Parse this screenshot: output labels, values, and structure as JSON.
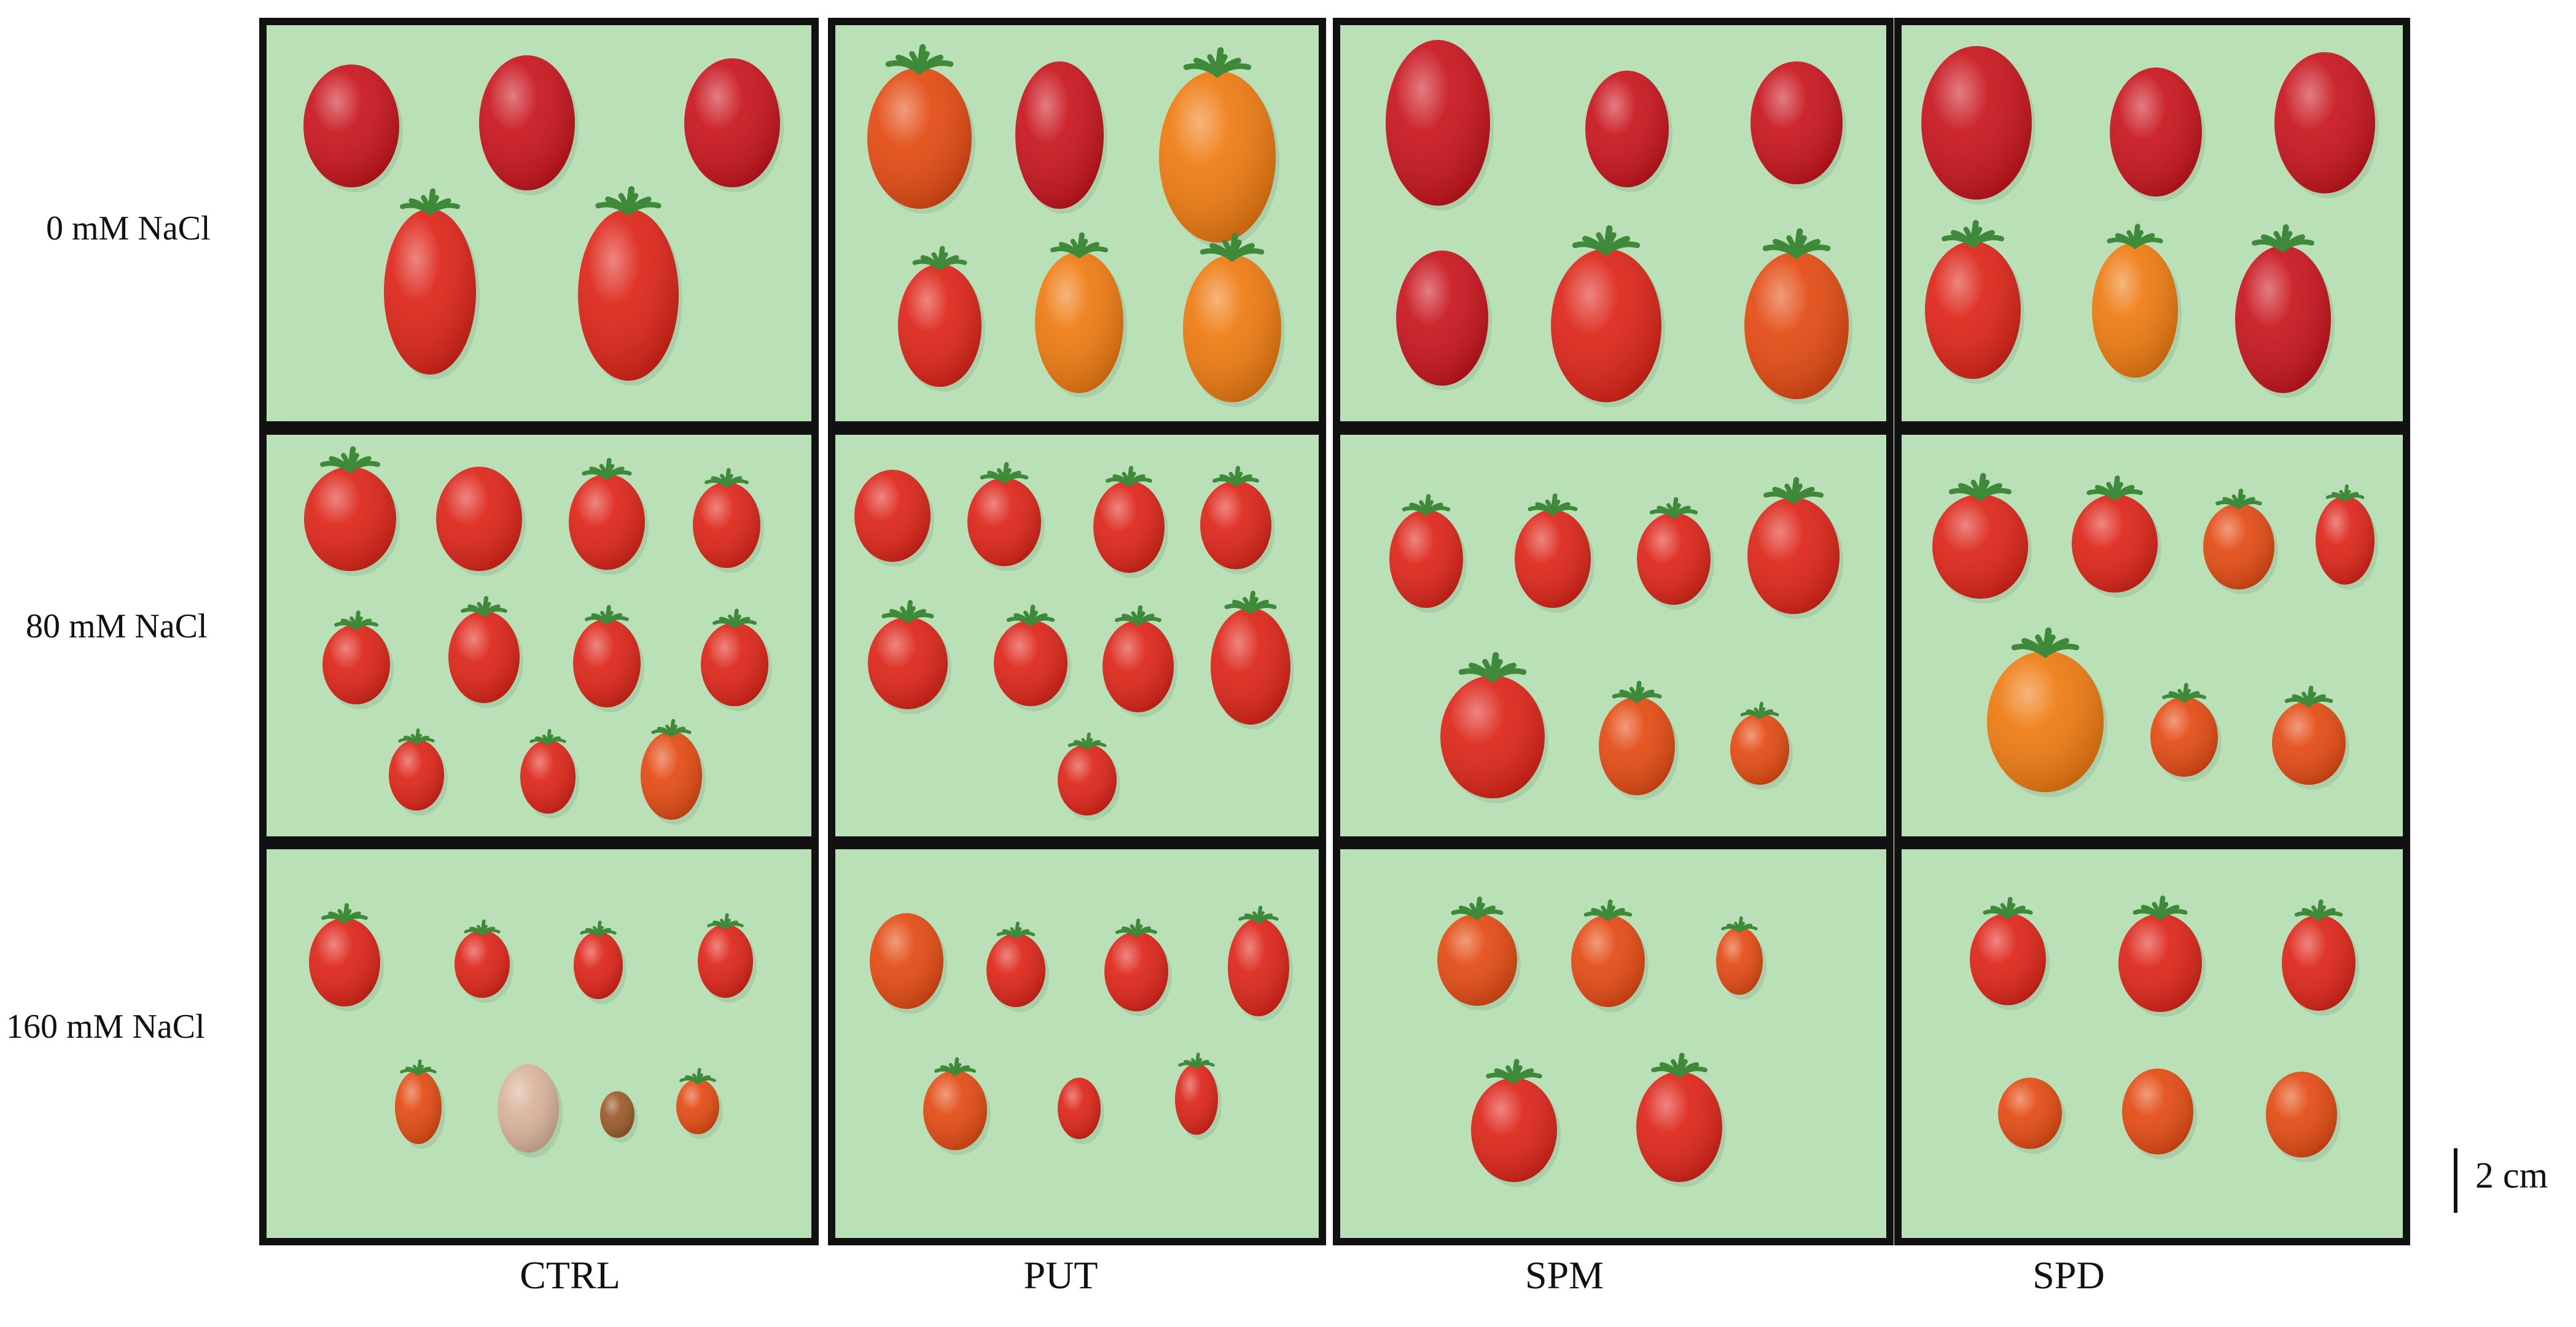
{
  "figure": {
    "row_labels": [
      "0 mM NaCl",
      "80 mM NaCl",
      "160 mM NaCl"
    ],
    "column_labels": [
      "CTRL",
      "PUT",
      "SPM",
      "SPD"
    ],
    "scale_bar": "2 cm",
    "colors": {
      "panel_bg": "#b9e0b6",
      "panel_border": "#111111",
      "deep_red": "#c8141c",
      "red": "#dd2418",
      "orange_red": "#e34a12",
      "orange": "#ee7a10",
      "pale": "#d9b39a",
      "brown": "#9a5a2a",
      "sepal": "#3f8a3a"
    },
    "fruit_counts": [
      [
        5,
        6,
        6,
        6
      ],
      [
        11,
        9,
        7,
        7
      ],
      [
        8,
        7,
        5,
        6
      ]
    ]
  }
}
